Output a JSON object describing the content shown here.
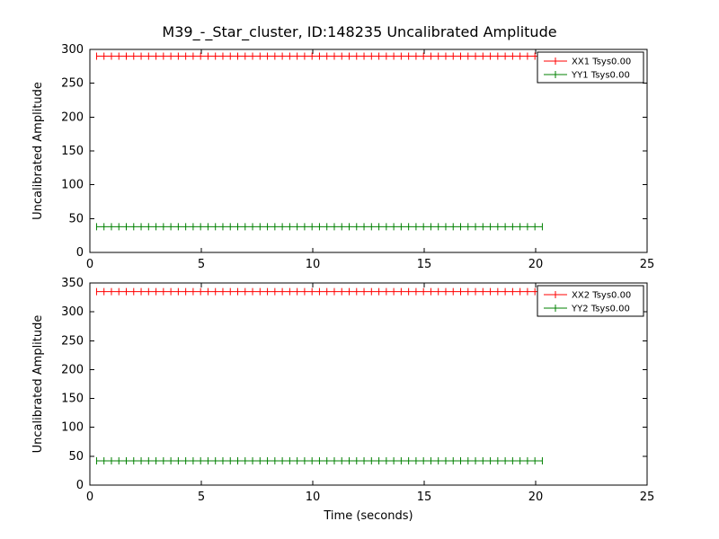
{
  "figure": {
    "title": "M39_-_Star_cluster, ID:148235 Uncalibrated Amplitude"
  },
  "chart_data": [
    {
      "type": "line",
      "subplot": "top",
      "title": "",
      "xlabel": "",
      "ylabel": "Uncalibrated Amplitude",
      "xlim": [
        0,
        25
      ],
      "ylim": [
        0,
        300
      ],
      "xticks": [
        0,
        5,
        10,
        15,
        20,
        25
      ],
      "yticks": [
        0,
        50,
        100,
        150,
        200,
        250,
        300
      ],
      "grid": false,
      "legend_position": "upper right",
      "series": [
        {
          "name": "XX1 Tsys0.00",
          "color": "#ff0000",
          "style": "errorbar-line",
          "y_value": 290,
          "x_start": 0.3,
          "x_end": 20.3,
          "n_points": 61
        },
        {
          "name": "YY1 Tsys0.00",
          "color": "#008000",
          "style": "errorbar-line",
          "y_value": 38,
          "x_start": 0.3,
          "x_end": 20.3,
          "n_points": 61
        }
      ]
    },
    {
      "type": "line",
      "subplot": "bottom",
      "title": "",
      "xlabel": "Time (seconds)",
      "ylabel": "Uncalibrated Amplitude",
      "xlim": [
        0,
        25
      ],
      "ylim": [
        0,
        350
      ],
      "xticks": [
        0,
        5,
        10,
        15,
        20,
        25
      ],
      "yticks": [
        0,
        50,
        100,
        150,
        200,
        250,
        300,
        350
      ],
      "grid": false,
      "legend_position": "upper right",
      "series": [
        {
          "name": "XX2 Tsys0.00",
          "color": "#ff0000",
          "style": "errorbar-line",
          "y_value": 335,
          "x_start": 0.3,
          "x_end": 20.3,
          "n_points": 61
        },
        {
          "name": "YY2 Tsys0.00",
          "color": "#008000",
          "style": "errorbar-line",
          "y_value": 42,
          "x_start": 0.3,
          "x_end": 20.3,
          "n_points": 61
        }
      ]
    }
  ]
}
